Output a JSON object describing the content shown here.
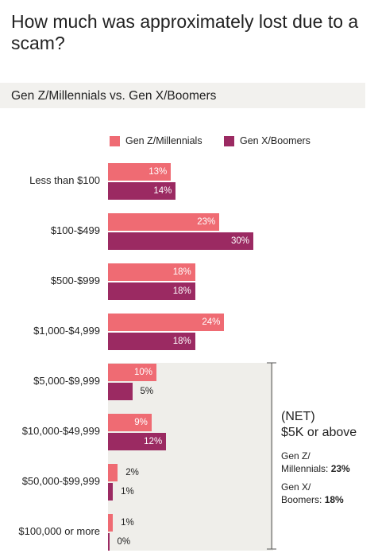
{
  "title": "How much was approximately lost due to a scam?",
  "subtitle": "Gen Z/Millennials vs. Gen X/Boomers",
  "colors": {
    "genz": "#ef6b73",
    "genx": "#9b2a62",
    "panel": "#efeeea",
    "band": "#f2f1ee"
  },
  "chart_data": {
    "type": "bar",
    "orientation": "horizontal",
    "categories": [
      "Less than $100",
      "$100-$499",
      "$500-$999",
      "$1,000-$4,999",
      "$5,000-$9,999",
      "$10,000-$49,999",
      "$50,000-$99,999",
      "$100,000 or more"
    ],
    "series": [
      {
        "name": "Gen Z/Millennials",
        "values": [
          13,
          23,
          18,
          24,
          10,
          9,
          2,
          1
        ],
        "labels": [
          "13%",
          "23%",
          "18%",
          "24%",
          "10%",
          "9%",
          "2%",
          "1%"
        ]
      },
      {
        "name": "Gen X/Boomers",
        "values": [
          14,
          30,
          18,
          18,
          5,
          12,
          1,
          0
        ],
        "labels": [
          "14%",
          "30%",
          "18%",
          "18%",
          "5%",
          "12%",
          "1%",
          "0%"
        ]
      }
    ],
    "legend_position": "top",
    "unit": "%"
  },
  "net": {
    "title": "(NET)",
    "subtitle": "$5K or above",
    "genz_label_line1": "Gen Z/",
    "genz_label_line2": "Millennials:",
    "genz_value": "23%",
    "genx_label_line1": "Gen X/",
    "genx_label_line2": "Boomers:",
    "genx_value": "18%"
  }
}
